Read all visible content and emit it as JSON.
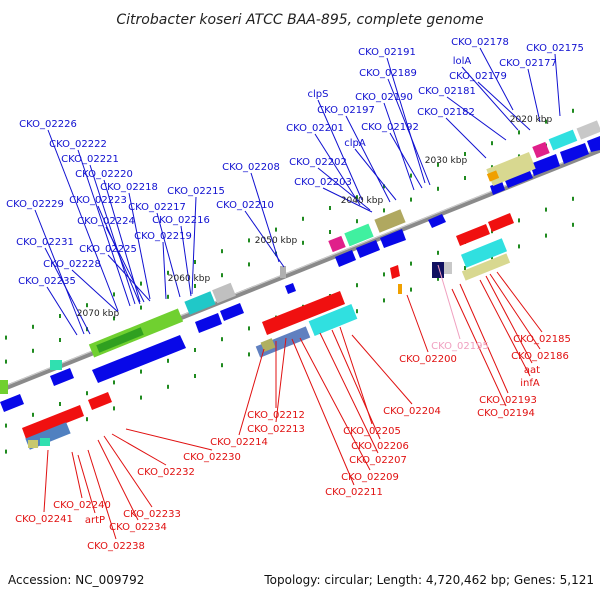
{
  "title": "Citrobacter koseri ATCC BAA-895, complete genome",
  "footer": {
    "accession": "Accession: NC_009792",
    "summary": "Topology: circular; Length: 4,720,462 bp; Genes: 5,121"
  },
  "colors": {
    "forward_label": "#1010d0",
    "reverse_label": "#e01010",
    "faded_label": "#f0a0c0",
    "forward_gene": "#0808e8",
    "reverse_gene": "#f01010",
    "backbone": "#777777",
    "tick": "#1f8a1f"
  },
  "kbp_ticks": [
    "2020 kbp",
    "2030 kbp",
    "2040 kbp",
    "2050 kbp",
    "2060 kbp",
    "2070 kbp"
  ],
  "forward_labels": [
    "CKO_02178",
    "CKO_02175",
    "CKO_02191",
    "lolA",
    "CKO_02177",
    "CKO_02189",
    "CKO_02179",
    "clpS",
    "CKO_02190",
    "CKO_02181",
    "CKO_02197",
    "CKO_02182",
    "CKO_02226",
    "CKO_02201",
    "CKO_02192",
    "CKO_02222",
    "clpA",
    "CKO_02221",
    "CKO_02208",
    "CKO_02202",
    "CKO_02220",
    "CKO_02203",
    "CKO_02218",
    "CKO_02215",
    "CKO_02223",
    "CKO_02229",
    "CKO_02217",
    "CKO_02210",
    "CKO_02224",
    "CKO_02216",
    "CKO_02219",
    "CKO_02231",
    "CKO_02225",
    "CKO_02228",
    "CKO_02235"
  ],
  "reverse_labels": [
    "CKO_02200",
    "CKO_02195",
    "CKO_02185",
    "CKO_02186",
    "aat",
    "infA",
    "CKO_02193",
    "CKO_02194",
    "CKO_02204",
    "CKO_02212",
    "CKO_02213",
    "CKO_02205",
    "CKO_02214",
    "CKO_02206",
    "CKO_02230",
    "CKO_02207",
    "CKO_02232",
    "CKO_02209",
    "CKO_02211",
    "CKO_02240",
    "CKO_02233",
    "CKO_02241",
    "artP",
    "CKO_02234",
    "CKO_02238"
  ]
}
